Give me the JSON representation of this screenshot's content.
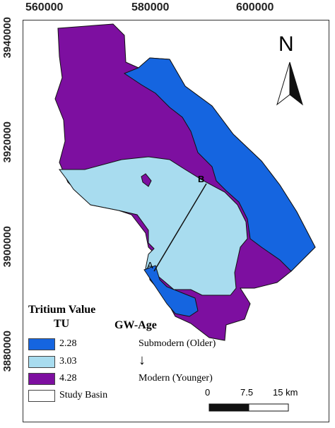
{
  "axes": {
    "x_ticks": [
      "560000",
      "580000",
      "600000"
    ],
    "y_ticks": [
      "3940000",
      "3920000",
      "3900000",
      "3880000"
    ]
  },
  "north_arrow": {
    "label": "N",
    "icon": "north-arrow-icon"
  },
  "profile_line": {
    "start_label": "A",
    "end_label": "B"
  },
  "legend": {
    "title": "Tritium Value",
    "unit_header": "TU",
    "age_header": "GW-Age",
    "items": [
      {
        "value": "2.28",
        "age": "Submodern (Older)",
        "color": "#1565e0"
      },
      {
        "value": "3.03",
        "age": "",
        "color": "#a8dcef"
      },
      {
        "value": "4.28",
        "age": "Modern (Younger)",
        "color": "#7d0fa0"
      },
      {
        "value": "Study Basin",
        "age": "",
        "color": "#ffffff"
      }
    ]
  },
  "scale_bar": {
    "labels": [
      "0",
      "7.5",
      "15 km"
    ]
  },
  "colors": {
    "zone_low": "#1565e0",
    "zone_mid": "#a8dcef",
    "zone_high": "#7d0fa0",
    "boundary": "#111111"
  }
}
